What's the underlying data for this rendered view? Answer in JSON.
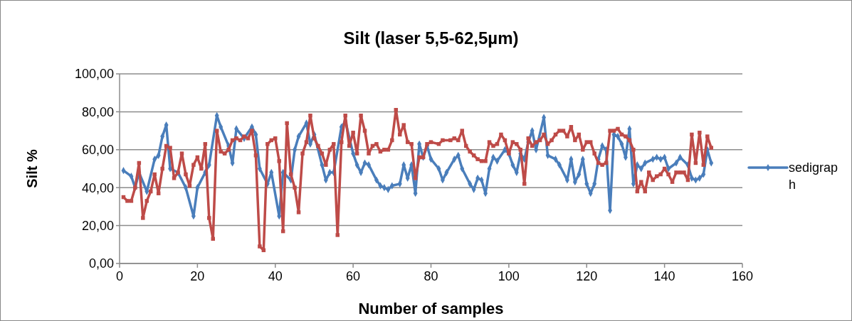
{
  "chart_data": {
    "type": "line",
    "title": "Silt (laser 5,5-62,5µm)",
    "xlabel": "Number of samples",
    "ylabel": "Silt %",
    "xlim": [
      0,
      160
    ],
    "xticks": [
      0,
      20,
      40,
      60,
      80,
      100,
      120,
      140,
      160
    ],
    "ylim": [
      0,
      100
    ],
    "yticks": [
      {
        "value": 0,
        "label": "0,00"
      },
      {
        "value": 20,
        "label": "20,00"
      },
      {
        "value": 40,
        "label": "40,00"
      },
      {
        "value": 60,
        "label": "60,00"
      },
      {
        "value": 80,
        "label": "80,00"
      },
      {
        "value": 100,
        "label": "100,00"
      }
    ],
    "grid": "y",
    "legend": "right",
    "line_style": "solid",
    "series": [
      {
        "name": "sedigraph",
        "color": "#4a7ebb",
        "marker": "diamond",
        "x": [
          1,
          3,
          4,
          5,
          7,
          9,
          10,
          11,
          12,
          13,
          15,
          17,
          19,
          20,
          22,
          23,
          25,
          26,
          28,
          29,
          30,
          32,
          34,
          35,
          36,
          38,
          39,
          41,
          42,
          44,
          45,
          46,
          48,
          49,
          50,
          52,
          53,
          54,
          55,
          57,
          58,
          60,
          61,
          62,
          63,
          64,
          66,
          67,
          68,
          69,
          70,
          72,
          73,
          74,
          75,
          76,
          77,
          78,
          79,
          80,
          82,
          83,
          84,
          86,
          87,
          88,
          90,
          91,
          92,
          93,
          94,
          95,
          96,
          97,
          99,
          100,
          101,
          102,
          103,
          104,
          105,
          106,
          107,
          109,
          110,
          112,
          113,
          115,
          116,
          117,
          118,
          119,
          120,
          121,
          122,
          123,
          124,
          125,
          126,
          127,
          128,
          129,
          130,
          131,
          132,
          133,
          134,
          135,
          137,
          138,
          139,
          140,
          141,
          143,
          144,
          146,
          147,
          148,
          149,
          150,
          151,
          152
        ],
        "values": [
          49,
          46,
          40,
          48,
          38,
          55,
          57,
          67,
          73,
          50,
          48,
          40,
          25,
          40,
          48,
          52,
          78,
          72,
          62,
          53,
          71,
          66,
          72,
          68,
          50,
          42,
          48,
          25,
          48,
          44,
          60,
          67,
          74,
          63,
          68,
          52,
          44,
          48,
          48,
          72,
          75,
          58,
          52,
          48,
          53,
          52,
          44,
          41,
          40,
          39,
          41,
          42,
          52,
          45,
          52,
          37,
          63,
          56,
          62,
          55,
          50,
          44,
          48,
          55,
          57,
          50,
          42,
          39,
          45,
          44,
          37,
          50,
          56,
          54,
          60,
          58,
          52,
          48,
          58,
          55,
          64,
          70,
          60,
          77,
          57,
          55,
          52,
          44,
          55,
          43,
          47,
          55,
          42,
          37,
          42,
          55,
          62,
          60,
          28,
          68,
          67,
          63,
          56,
          71,
          42,
          52,
          50,
          53,
          55,
          56,
          55,
          56,
          50,
          53,
          56,
          52,
          45,
          44,
          45,
          47,
          60,
          53
        ]
      },
      {
        "color": "#be4b48",
        "marker": "square",
        "x": [
          1,
          2,
          3,
          4,
          5,
          6,
          7,
          8,
          9,
          10,
          11,
          12,
          13,
          14,
          15,
          16,
          17,
          18,
          19,
          20,
          21,
          22,
          23,
          24,
          25,
          26,
          27,
          28,
          29,
          30,
          31,
          32,
          33,
          34,
          35,
          36,
          37,
          38,
          39,
          40,
          41,
          42,
          43,
          44,
          45,
          46,
          47,
          48,
          49,
          50,
          51,
          52,
          53,
          54,
          55,
          56,
          57,
          58,
          59,
          60,
          61,
          62,
          63,
          64,
          65,
          66,
          67,
          68,
          69,
          70,
          71,
          72,
          73,
          74,
          75,
          76,
          77,
          78,
          79,
          80,
          82,
          83,
          85,
          86,
          87,
          88,
          89,
          90,
          91,
          92,
          93,
          94,
          95,
          96,
          97,
          98,
          99,
          100,
          101,
          102,
          103,
          104,
          105,
          106,
          107,
          108,
          109,
          110,
          111,
          112,
          113,
          114,
          115,
          116,
          117,
          118,
          119,
          120,
          121,
          122,
          123,
          124,
          125,
          126,
          127,
          128,
          129,
          130,
          131,
          132,
          133,
          134,
          135,
          136,
          137,
          138,
          139,
          140,
          141,
          142,
          143,
          144,
          145,
          146,
          147,
          148,
          149,
          150,
          151,
          152
        ],
        "values": [
          35,
          33,
          33,
          40,
          53,
          24,
          33,
          38,
          47,
          37,
          50,
          62,
          61,
          45,
          48,
          58,
          47,
          41,
          52,
          56,
          50,
          63,
          24,
          13,
          70,
          59,
          58,
          60,
          65,
          66,
          65,
          67,
          66,
          70,
          57,
          9,
          7,
          63,
          65,
          66,
          54,
          17,
          74,
          47,
          40,
          27,
          58,
          64,
          78,
          66,
          62,
          58,
          52,
          60,
          63,
          15,
          64,
          78,
          62,
          69,
          58,
          78,
          70,
          58,
          62,
          63,
          59,
          60,
          60,
          65,
          81,
          68,
          73,
          64,
          63,
          45,
          56,
          56,
          63,
          64,
          63,
          65,
          65,
          66,
          65,
          70,
          62,
          59,
          57,
          55,
          54,
          54,
          64,
          62,
          63,
          68,
          65,
          58,
          64,
          63,
          60,
          42,
          66,
          62,
          64,
          65,
          68,
          63,
          65,
          68,
          70,
          70,
          67,
          72,
          65,
          68,
          60,
          64,
          64,
          58,
          53,
          52,
          53,
          70,
          70,
          71,
          68,
          67,
          65,
          60,
          38,
          43,
          38,
          48,
          44,
          46,
          47,
          50,
          47,
          43,
          48,
          48,
          48,
          44,
          68,
          53,
          69,
          52,
          67,
          61
        ]
      }
    ]
  }
}
